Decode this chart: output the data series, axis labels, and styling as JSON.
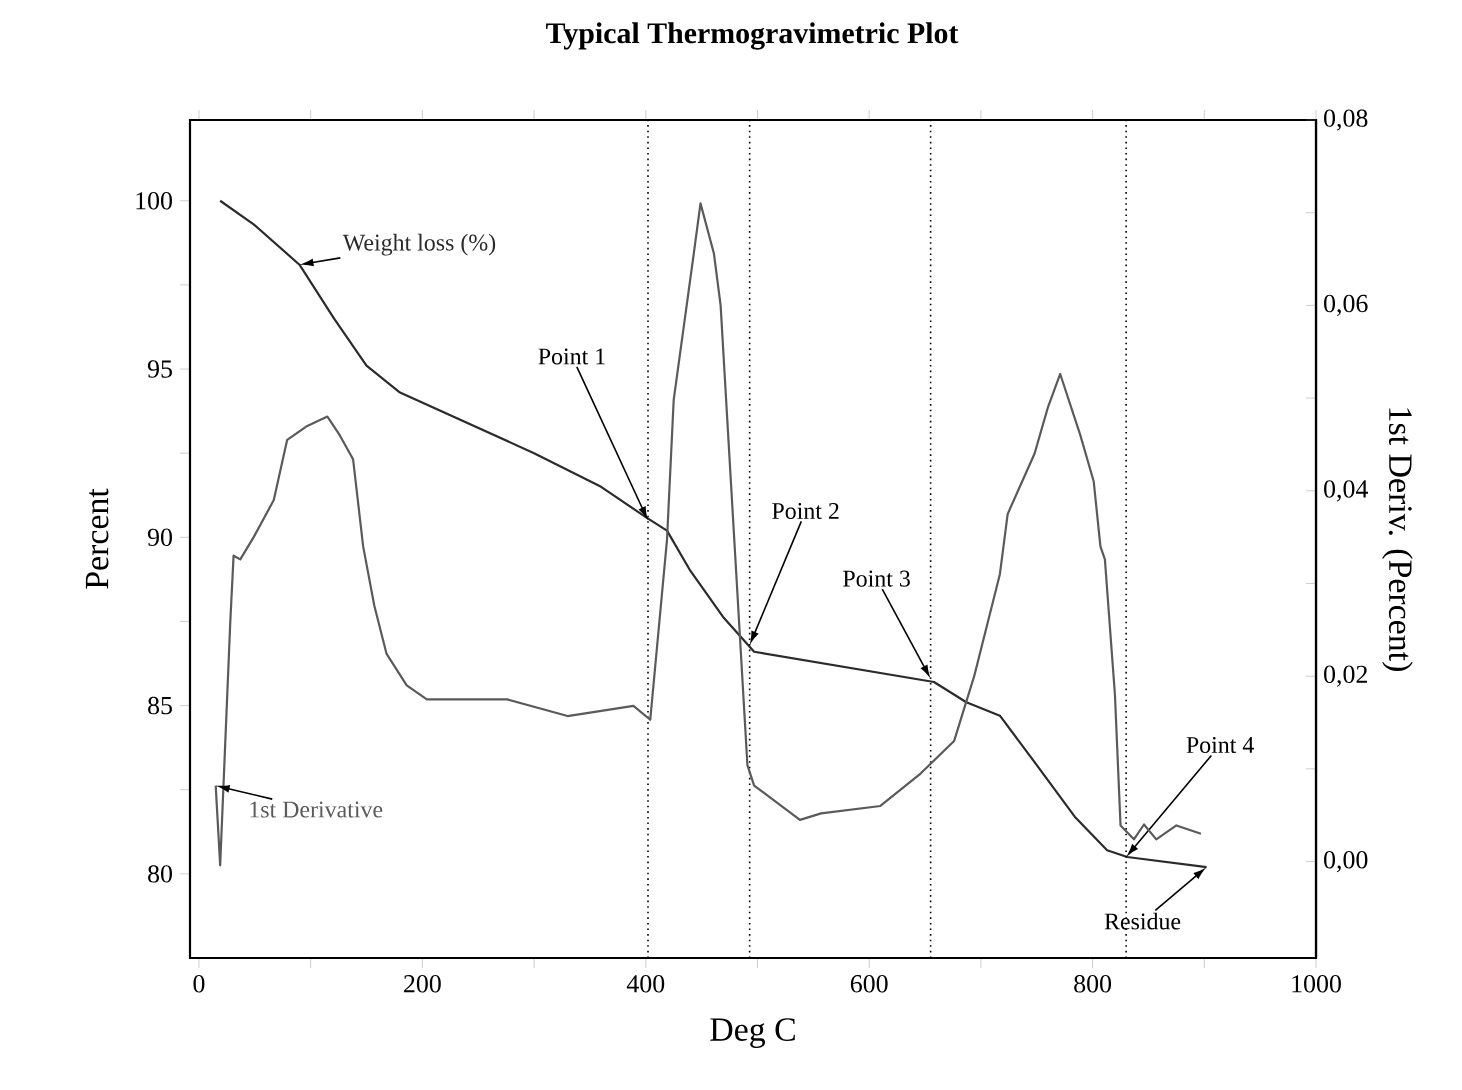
{
  "chart_data": {
    "type": "line",
    "title": "Typical Thermogravimetric Plot",
    "xlabel": "Deg C",
    "ylabel": "Percent",
    "y2label": "1st Deriv. (Percent)",
    "xlim": [
      -8,
      1000
    ],
    "ylim": [
      77.5,
      102.4
    ],
    "y2lim": [
      -0.0104,
      0.08
    ],
    "xticks": [
      0,
      {
        "value": 100,
        "label": null
      },
      200,
      {
        "value": 300,
        "label": null
      },
      400,
      {
        "value": 500,
        "label": null
      },
      600,
      {
        "value": 700,
        "label": null
      },
      800,
      {
        "value": 900,
        "label": null
      },
      1000
    ],
    "yticks": [
      80,
      {
        "value": 82.5,
        "label": null
      },
      85,
      {
        "value": 87.5,
        "label": null
      },
      90,
      {
        "value": 92.5,
        "label": null
      },
      95,
      {
        "value": 97.5,
        "label": null
      },
      100
    ],
    "y2ticks": [
      {
        "value": 0,
        "label": "0,00"
      },
      {
        "value": 0.01,
        "label": null
      },
      {
        "value": 0.02,
        "label": "0,02"
      },
      {
        "value": 0.03,
        "label": null
      },
      {
        "value": 0.04,
        "label": "0,04"
      },
      {
        "value": 0.05,
        "label": null
      },
      {
        "value": 0.06,
        "label": "0,06"
      },
      {
        "value": 0.07,
        "label": null
      },
      {
        "value": 0.08,
        "label": "0,08"
      }
    ],
    "line_style": "solid",
    "series": [
      {
        "name": "Weight loss (%)",
        "color": "#2b2b2b",
        "x": [
          19,
          49,
          90,
          121,
          150,
          180,
          240,
          300,
          360,
          400,
          419,
          440,
          470,
          497,
          658,
          687,
          717,
          753,
          784,
          813,
          831,
          902
        ],
        "values": [
          100,
          99.3,
          98.1,
          96.5,
          95.1,
          94.3,
          93.4,
          92.5,
          91.5,
          90.6,
          90.2,
          89.0,
          87.6,
          86.6,
          85.7,
          85.1,
          84.7,
          83.1,
          81.7,
          80.7,
          80.5,
          80.2
        ]
      },
      {
        "name": "1st Derivative",
        "color": "#5a5a5a",
        "axis": "y2",
        "x": [
          15,
          19,
          28,
          31,
          37,
          49,
          67,
          79,
          97,
          115,
          126,
          138,
          147,
          157,
          168,
          186,
          204,
          276,
          330,
          389,
          404,
          419,
          425,
          443,
          449,
          461,
          467,
          491,
          497,
          538,
          557,
          610,
          646,
          676,
          694,
          717,
          724,
          748,
          760,
          771,
          789,
          801,
          807,
          811,
          820,
          825,
          837,
          846,
          857,
          875,
          897
        ],
        "values": [
          0.0082,
          -0.0004,
          0.0257,
          0.033,
          0.0326,
          0.035,
          0.039,
          0.0455,
          0.047,
          0.048,
          0.046,
          0.0434,
          0.034,
          0.0276,
          0.0224,
          0.019,
          0.0175,
          0.0175,
          0.0157,
          0.0168,
          0.0153,
          0.0347,
          0.0498,
          0.0656,
          0.071,
          0.0656,
          0.06,
          0.0104,
          0.0082,
          0.0045,
          0.0052,
          0.006,
          0.0095,
          0.013,
          0.02,
          0.031,
          0.0375,
          0.044,
          0.049,
          0.0526,
          0.046,
          0.041,
          0.034,
          0.0326,
          0.018,
          0.0039,
          0.0024,
          0.004,
          0.0024,
          0.0039,
          0.003
        ]
      }
    ],
    "ref_lines": [
      {
        "axis": "x",
        "value": 402,
        "line_style": "dotted"
      },
      {
        "axis": "x",
        "value": 493,
        "line_style": "dotted"
      },
      {
        "axis": "x",
        "value": 655,
        "line_style": "dotted"
      },
      {
        "axis": "x",
        "value": 830,
        "line_style": "dotted"
      }
    ],
    "annotations": [
      {
        "text": "Point 1",
        "x": 402,
        "y": 90.5
      },
      {
        "text": "Point 2",
        "x": 493,
        "y": 86.8
      },
      {
        "text": "Point 3",
        "x": 655,
        "y": 85.8
      },
      {
        "text": "Point 4",
        "x": 830,
        "y": 80.5
      },
      {
        "text": "Residue",
        "x": 902,
        "y": 80.2
      }
    ]
  }
}
